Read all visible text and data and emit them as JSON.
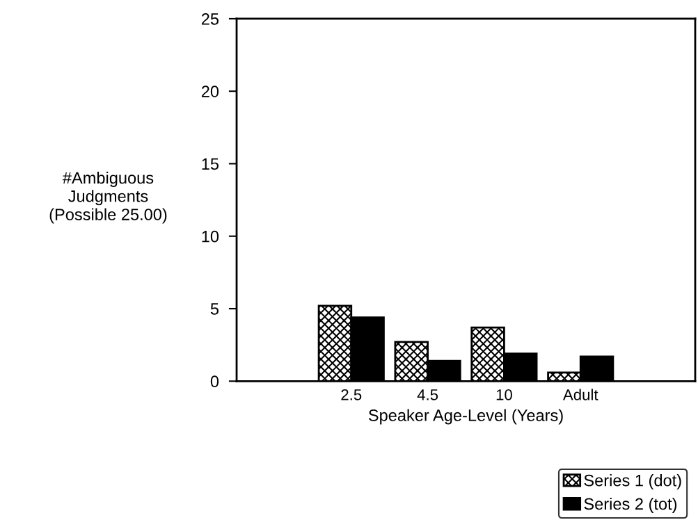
{
  "chart_data": {
    "type": "bar",
    "xlabel": "Speaker Age-Level (Years)",
    "ylabel": "#Ambiguous\nJudgments\n(Possible 25.00)",
    "categories": [
      null,
      "2.5",
      "4.5",
      "10",
      "Adult",
      null
    ],
    "series": [
      {
        "name": "Series 1 (dot)",
        "color": "#000000",
        "values": [
          null,
          5.2,
          2.7,
          3.7,
          0.6,
          null
        ]
      },
      {
        "name": "Series 2 (tot)",
        "color": "#000000",
        "values": [
          null,
          4.4,
          1.4,
          1.9,
          1.7,
          null
        ]
      }
    ],
    "ylim": [
      0,
      25
    ],
    "yticks": [
      0,
      5,
      10,
      15,
      20,
      25
    ],
    "grid": false,
    "legend": "bottom right"
  }
}
